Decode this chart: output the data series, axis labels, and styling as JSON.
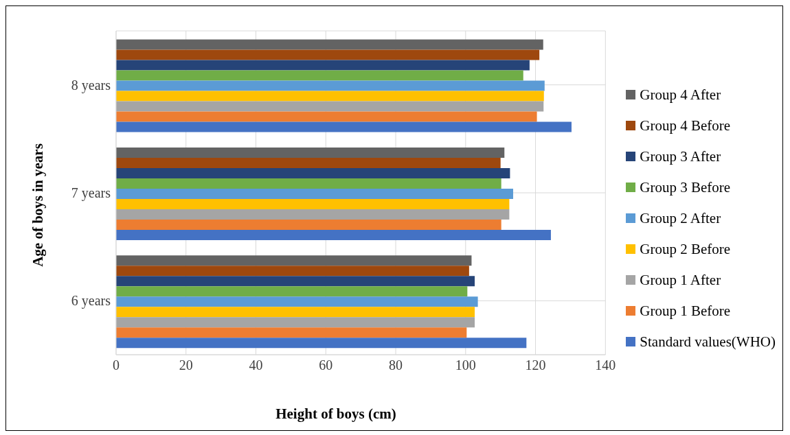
{
  "chart_data": {
    "type": "bar",
    "orientation": "horizontal",
    "xlabel": "Height of boys (cm)",
    "ylabel": "Age of boys in years",
    "categories": [
      "8 years",
      "7 years",
      "6 years"
    ],
    "series": [
      {
        "name": "Group 4 After",
        "color": "#636363",
        "values": [
          122.2,
          111.1,
          101.7
        ]
      },
      {
        "name": "Group 4 Before",
        "color": "#9e480e",
        "values": [
          121.1,
          110.0,
          101.0
        ]
      },
      {
        "name": "Group 3 After",
        "color": "#264478",
        "values": [
          118.3,
          112.7,
          102.6
        ]
      },
      {
        "name": "Group 3 Before",
        "color": "#70ad47",
        "values": [
          116.5,
          110.2,
          100.5
        ]
      },
      {
        "name": "Group 2 After",
        "color": "#5b9bd5",
        "values": [
          122.6,
          113.6,
          103.5
        ]
      },
      {
        "name": "Group 2 Before",
        "color": "#ffc000",
        "values": [
          122.4,
          112.5,
          102.6
        ]
      },
      {
        "name": "Group 1 After",
        "color": "#a5a5a5",
        "values": [
          122.3,
          112.5,
          102.6
        ]
      },
      {
        "name": "Group 1 Before",
        "color": "#ed7d31",
        "values": [
          120.4,
          110.2,
          100.3
        ]
      },
      {
        "name": "Standard values(WHO)",
        "color": "#4472c4",
        "values": [
          130.3,
          124.4,
          117.4
        ]
      }
    ],
    "xlim": [
      0,
      140
    ],
    "xticks": [
      0,
      20,
      40,
      60,
      80,
      100,
      120,
      140
    ],
    "grid": true,
    "legend": "right"
  }
}
